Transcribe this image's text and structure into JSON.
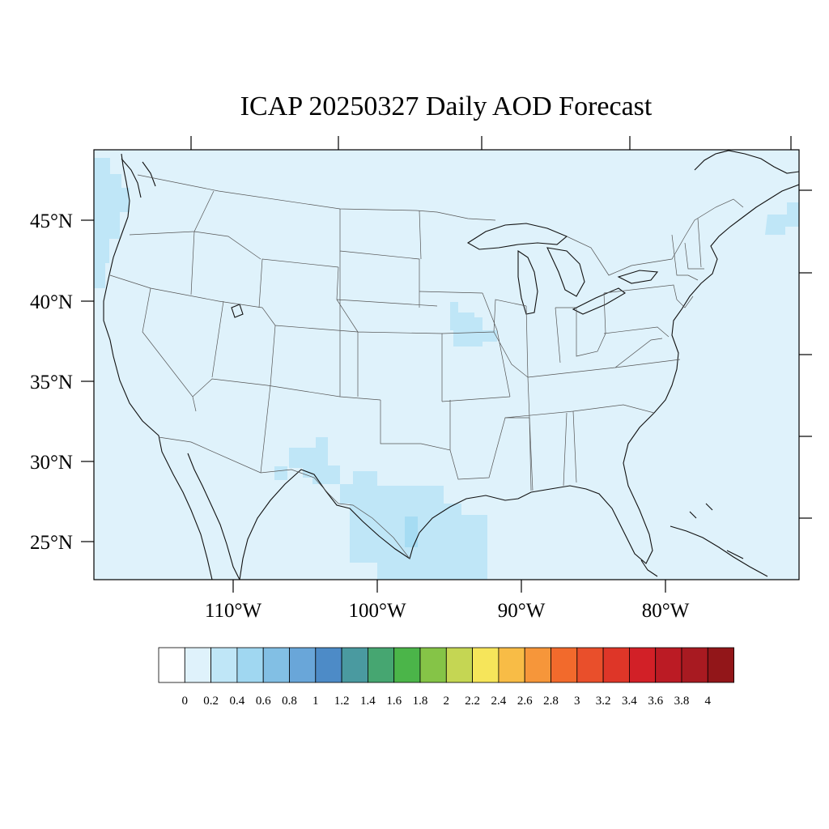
{
  "title": "ICAP 20250327 Daily AOD Forecast",
  "map": {
    "background_color": "#dff2fb",
    "lat_labels": [
      "45°N",
      "40°N",
      "35°N",
      "30°N",
      "25°N"
    ],
    "lon_labels": [
      "110°W",
      "100°W",
      "90°W",
      "80°W"
    ],
    "features": [
      {
        "region": "Pacific Northwest coast",
        "aod_bin": "0.2-0.4",
        "color": "#bfe6f7"
      },
      {
        "region": "Iowa / Missouri",
        "aod_bin": "0.2-0.4",
        "color": "#bfe6f7"
      },
      {
        "region": "West Texas",
        "aod_bin": "0.2-0.4",
        "color": "#bfe6f7"
      },
      {
        "region": "South Texas / Gulf coast",
        "aod_bin": "0.2-0.4",
        "color": "#bfe6f7"
      },
      {
        "region": "South Texas core",
        "aod_bin": "0.4-0.6",
        "color": "#a6dcf3"
      },
      {
        "region": "Nova Scotia",
        "aod_bin": "0.2-0.4",
        "color": "#bfe6f7"
      }
    ]
  },
  "colorbar": {
    "labels": [
      "0",
      "0.2",
      "0.4",
      "0.6",
      "0.8",
      "1",
      "1.2",
      "1.4",
      "1.6",
      "1.8",
      "2",
      "2.2",
      "2.4",
      "2.6",
      "2.8",
      "3",
      "3.2",
      "3.4",
      "3.6",
      "3.8",
      "4"
    ],
    "colors": [
      "#ffffff",
      "#dff2fb",
      "#bfe6f7",
      "#a0d7f1",
      "#82bfe4",
      "#69a6d9",
      "#4d8bc7",
      "#4a9aa0",
      "#46a671",
      "#4bb549",
      "#85c447",
      "#c5d653",
      "#f6e55a",
      "#f8bc46",
      "#f6963a",
      "#f26a2c",
      "#e94f2b",
      "#de3628",
      "#d22027",
      "#bb1b24",
      "#a81a21",
      "#921619"
    ]
  }
}
